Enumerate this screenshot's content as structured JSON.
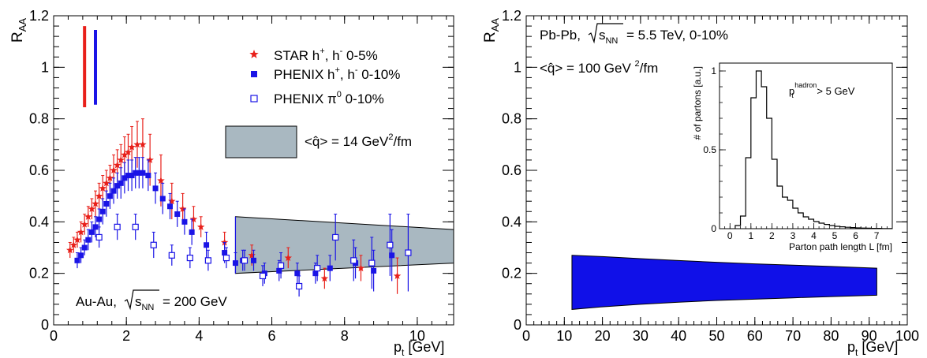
{
  "chart_data": [
    {
      "type": "scatter",
      "ylabel": "R",
      "ylabel_sub": "AA",
      "xlabel": "p",
      "xlabel_sub": "t",
      "xlabel_units": "[GeV]",
      "xlim": [
        0,
        11
      ],
      "ylim": [
        0,
        1.2
      ],
      "xticks": [
        0,
        2,
        4,
        6,
        8,
        10
      ],
      "yticks": [
        0,
        0.2,
        0.4,
        0.6,
        0.8,
        1,
        1.2
      ],
      "ytick_labels": [
        "0",
        "0.2",
        "0.4",
        "0.6",
        "0.8",
        "1",
        "1.2"
      ],
      "system_label": {
        "prefix": "Au-Au,",
        "sqrt_sub": "NN",
        "suffix": "= 200 GeV"
      },
      "legend": [
        {
          "key": "star",
          "text": "STAR  h",
          "sup1": "+",
          "mid": ", h",
          "sup2": "-",
          "tail": "  0-5%",
          "color": "#e8201a",
          "marker": "star"
        },
        {
          "key": "phenix_h",
          "text": "PHENIX  h",
          "sup1": "+",
          "mid": ", h",
          "sup2": "-",
          "tail": "  0-10%",
          "color": "#1a14e6",
          "marker": "filled-square"
        },
        {
          "key": "phenix_pi0",
          "text": "PHENIX  π",
          "sup1": "0",
          "mid": "",
          "sup2": "",
          "tail": "  0-10%",
          "color": "#1a14e6",
          "marker": "open-square"
        },
        {
          "key": "band",
          "text": "<q̂> = 14 GeV",
          "sup1": "2",
          "mid": "/fm",
          "sup2": "",
          "tail": "",
          "color": "#a9b8c1",
          "marker": "box"
        }
      ],
      "normalization_bars": [
        {
          "x": 0.85,
          "y_low": 0.845,
          "y_high": 1.16,
          "color": "#e8201a"
        },
        {
          "x": 1.15,
          "y_low": 0.855,
          "y_high": 1.145,
          "color": "#1a14e6"
        }
      ],
      "series": [
        {
          "name": "STAR h+, h- 0-5%",
          "marker": "star",
          "color": "#e8201a",
          "points": [
            {
              "x": 0.45,
              "y": 0.29,
              "err": 0.03
            },
            {
              "x": 0.55,
              "y": 0.31,
              "err": 0.03
            },
            {
              "x": 0.65,
              "y": 0.33,
              "err": 0.03
            },
            {
              "x": 0.75,
              "y": 0.36,
              "err": 0.04
            },
            {
              "x": 0.85,
              "y": 0.39,
              "err": 0.04
            },
            {
              "x": 0.95,
              "y": 0.42,
              "err": 0.04
            },
            {
              "x": 1.05,
              "y": 0.45,
              "err": 0.04
            },
            {
              "x": 1.15,
              "y": 0.47,
              "err": 0.05
            },
            {
              "x": 1.25,
              "y": 0.5,
              "err": 0.05
            },
            {
              "x": 1.35,
              "y": 0.53,
              "err": 0.05
            },
            {
              "x": 1.45,
              "y": 0.55,
              "err": 0.05
            },
            {
              "x": 1.55,
              "y": 0.57,
              "err": 0.05
            },
            {
              "x": 1.65,
              "y": 0.6,
              "err": 0.06
            },
            {
              "x": 1.75,
              "y": 0.62,
              "err": 0.06
            },
            {
              "x": 1.85,
              "y": 0.64,
              "err": 0.06
            },
            {
              "x": 1.95,
              "y": 0.66,
              "err": 0.07
            },
            {
              "x": 2.05,
              "y": 0.67,
              "err": 0.07
            },
            {
              "x": 2.15,
              "y": 0.69,
              "err": 0.08
            },
            {
              "x": 2.3,
              "y": 0.7,
              "err": 0.09
            },
            {
              "x": 2.45,
              "y": 0.7,
              "err": 0.1
            },
            {
              "x": 2.65,
              "y": 0.64,
              "err": 0.1
            },
            {
              "x": 2.95,
              "y": 0.56,
              "err": 0.1
            },
            {
              "x": 3.25,
              "y": 0.48,
              "err": 0.07
            },
            {
              "x": 3.55,
              "y": 0.45,
              "err": 0.06
            },
            {
              "x": 3.85,
              "y": 0.41,
              "err": 0.05
            },
            {
              "x": 4.05,
              "y": 0.38,
              "err": 0.04
            },
            {
              "x": 4.7,
              "y": 0.32,
              "err": 0.04
            },
            {
              "x": 5.45,
              "y": 0.27,
              "err": 0.04
            },
            {
              "x": 6.45,
              "y": 0.26,
              "err": 0.04
            },
            {
              "x": 7.45,
              "y": 0.18,
              "err": 0.04
            },
            {
              "x": 8.45,
              "y": 0.22,
              "err": 0.05
            },
            {
              "x": 9.45,
              "y": 0.19,
              "err": 0.07
            }
          ]
        },
        {
          "name": "PHENIX h+, h- 0-10%",
          "marker": "filled-square",
          "color": "#1a14e6",
          "points": [
            {
              "x": 0.65,
              "y": 0.25,
              "err": 0.03
            },
            {
              "x": 0.75,
              "y": 0.27,
              "err": 0.03
            },
            {
              "x": 0.85,
              "y": 0.3,
              "err": 0.03
            },
            {
              "x": 0.95,
              "y": 0.33,
              "err": 0.04
            },
            {
              "x": 1.05,
              "y": 0.36,
              "err": 0.04
            },
            {
              "x": 1.15,
              "y": 0.38,
              "err": 0.04
            },
            {
              "x": 1.25,
              "y": 0.41,
              "err": 0.04
            },
            {
              "x": 1.35,
              "y": 0.44,
              "err": 0.05
            },
            {
              "x": 1.45,
              "y": 0.47,
              "err": 0.05
            },
            {
              "x": 1.55,
              "y": 0.5,
              "err": 0.05
            },
            {
              "x": 1.65,
              "y": 0.52,
              "err": 0.05
            },
            {
              "x": 1.75,
              "y": 0.54,
              "err": 0.05
            },
            {
              "x": 1.85,
              "y": 0.55,
              "err": 0.06
            },
            {
              "x": 1.95,
              "y": 0.57,
              "err": 0.06
            },
            {
              "x": 2.05,
              "y": 0.58,
              "err": 0.06
            },
            {
              "x": 2.15,
              "y": 0.58,
              "err": 0.06
            },
            {
              "x": 2.25,
              "y": 0.59,
              "err": 0.06
            },
            {
              "x": 2.35,
              "y": 0.59,
              "err": 0.06
            },
            {
              "x": 2.45,
              "y": 0.59,
              "err": 0.06
            },
            {
              "x": 2.6,
              "y": 0.58,
              "err": 0.06
            },
            {
              "x": 2.8,
              "y": 0.53,
              "err": 0.06
            },
            {
              "x": 3.0,
              "y": 0.49,
              "err": 0.06
            },
            {
              "x": 3.2,
              "y": 0.46,
              "err": 0.05
            },
            {
              "x": 3.4,
              "y": 0.43,
              "err": 0.05
            },
            {
              "x": 3.6,
              "y": 0.4,
              "err": 0.05
            },
            {
              "x": 3.8,
              "y": 0.36,
              "err": 0.05
            },
            {
              "x": 4.2,
              "y": 0.31,
              "err": 0.05
            },
            {
              "x": 4.7,
              "y": 0.28,
              "err": 0.04
            },
            {
              "x": 5.0,
              "y": 0.24,
              "err": 0.04
            },
            {
              "x": 5.2,
              "y": 0.25,
              "err": 0.04
            },
            {
              "x": 5.5,
              "y": 0.25,
              "err": 0.04
            },
            {
              "x": 5.8,
              "y": 0.2,
              "err": 0.04
            },
            {
              "x": 6.2,
              "y": 0.21,
              "err": 0.04
            },
            {
              "x": 6.7,
              "y": 0.2,
              "err": 0.04
            },
            {
              "x": 7.2,
              "y": 0.2,
              "err": 0.04
            },
            {
              "x": 7.6,
              "y": 0.22,
              "err": 0.05
            },
            {
              "x": 8.3,
              "y": 0.24,
              "err": 0.06
            },
            {
              "x": 8.8,
              "y": 0.21,
              "err": 0.08
            },
            {
              "x": 9.3,
              "y": 0.27,
              "err": 0.1
            }
          ]
        },
        {
          "name": "PHENIX π0 0-10%",
          "marker": "open-square",
          "color": "#1a14e6",
          "points": [
            {
              "x": 1.25,
              "y": 0.34,
              "err": 0.04
            },
            {
              "x": 1.75,
              "y": 0.38,
              "err": 0.05
            },
            {
              "x": 2.25,
              "y": 0.38,
              "err": 0.05
            },
            {
              "x": 2.75,
              "y": 0.31,
              "err": 0.05
            },
            {
              "x": 3.25,
              "y": 0.27,
              "err": 0.04
            },
            {
              "x": 3.75,
              "y": 0.26,
              "err": 0.04
            },
            {
              "x": 4.25,
              "y": 0.25,
              "err": 0.04
            },
            {
              "x": 4.75,
              "y": 0.26,
              "err": 0.04
            },
            {
              "x": 5.25,
              "y": 0.25,
              "err": 0.04
            },
            {
              "x": 5.75,
              "y": 0.19,
              "err": 0.04
            },
            {
              "x": 6.25,
              "y": 0.23,
              "err": 0.05
            },
            {
              "x": 6.75,
              "y": 0.15,
              "err": 0.04
            },
            {
              "x": 7.25,
              "y": 0.22,
              "err": 0.05
            },
            {
              "x": 7.75,
              "y": 0.34,
              "err": 0.09
            },
            {
              "x": 8.25,
              "y": 0.25,
              "err": 0.08
            },
            {
              "x": 8.75,
              "y": 0.24,
              "err": 0.1
            },
            {
              "x": 9.25,
              "y": 0.31,
              "err": 0.12
            },
            {
              "x": 9.75,
              "y": 0.28,
              "err": 0.15
            }
          ]
        }
      ],
      "band": {
        "color": "#a9b8c1",
        "x": [
          5,
          11
        ],
        "upper": [
          0.42,
          0.37
        ],
        "lower": [
          0.2,
          0.24
        ]
      }
    },
    {
      "type": "area",
      "ylabel": "R",
      "ylabel_sub": "AA",
      "xlabel": "p",
      "xlabel_sub": "t",
      "xlabel_units": "[GeV]",
      "xlim": [
        0,
        100
      ],
      "ylim": [
        0,
        1.2
      ],
      "xticks": [
        0,
        10,
        20,
        30,
        40,
        50,
        60,
        70,
        80,
        90,
        100
      ],
      "yticks": [
        0,
        0.2,
        0.4,
        0.6,
        0.8,
        1,
        1.2
      ],
      "ytick_labels": [
        "0",
        "0.2",
        "0.4",
        "0.6",
        "0.8",
        "1",
        "1.2"
      ],
      "system_label": {
        "prefix": "Pb-Pb,",
        "sqrt_sub": "NN",
        "suffix": "= 5.5 TeV, 0-10%"
      },
      "qhat_label": {
        "text": "<q̂> = 100 GeV ",
        "sup": "2",
        "tail": "/fm"
      },
      "band": {
        "color": "#1010e8",
        "x": [
          12,
          20,
          30,
          40,
          50,
          60,
          70,
          80,
          92
        ],
        "upper": [
          0.27,
          0.265,
          0.257,
          0.25,
          0.243,
          0.237,
          0.232,
          0.227,
          0.22
        ],
        "lower": [
          0.06,
          0.07,
          0.08,
          0.088,
          0.095,
          0.1,
          0.105,
          0.11,
          0.115
        ]
      },
      "inset": {
        "type": "histogram",
        "ylabel": "# of partons [a.u.]",
        "xlabel": "Parton path length L [fm]",
        "annotation": {
          "text": "p",
          "sub": "t",
          "sup": "hadron",
          "tail": " > 5 GeV"
        },
        "xlim": [
          -0.5,
          7.75
        ],
        "ylim": [
          0,
          1.05
        ],
        "xticks": [
          0,
          1,
          2,
          3,
          4,
          5,
          6,
          7
        ],
        "yticks": [
          0,
          0.5,
          1
        ],
        "ytick_labels": [
          "0",
          "0.5",
          "1"
        ],
        "bin_width": 0.25,
        "bin_start": 0.25,
        "values": [
          0.02,
          0.08,
          0.45,
          0.83,
          1.0,
          0.9,
          0.7,
          0.44,
          0.27,
          0.2,
          0.18,
          0.13,
          0.1,
          0.075,
          0.06,
          0.045,
          0.035,
          0.027,
          0.02,
          0.015,
          0.012,
          0.009,
          0.007,
          0.005,
          0.004,
          0.003,
          0.002,
          0.002,
          0.001,
          0.001
        ]
      }
    }
  ]
}
